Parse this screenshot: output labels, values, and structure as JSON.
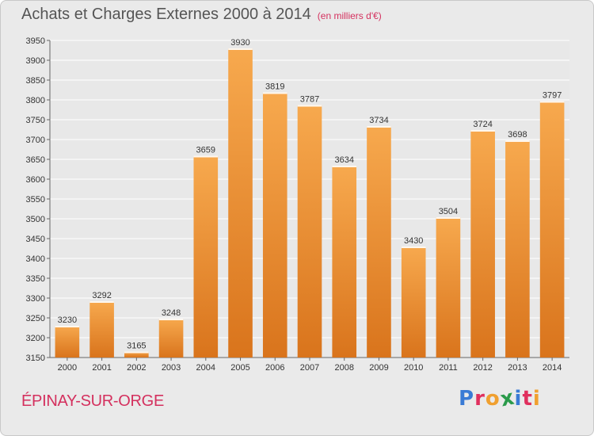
{
  "header": {
    "title": "Achats et Charges Externes 2000 à 2014",
    "unit": "(en milliers d'€)"
  },
  "footer": {
    "commune": "ÉPINAY-SUR-ORGE",
    "brand": {
      "letters": [
        "P",
        "r",
        "o",
        "x",
        "i",
        "t",
        "i"
      ],
      "colors": [
        "#3a7bd5",
        "#e0305e",
        "#f0a030",
        "#2a9a4a",
        "#3a7bd5",
        "#e0305e",
        "#f0a030"
      ]
    }
  },
  "colors": {
    "bar_top": "#f7a94e",
    "bar_bottom": "#d9741c",
    "plot_bg": "#e8e8e8",
    "grid": "#ffffff"
  },
  "chart_data": {
    "type": "bar",
    "title": "Achats et Charges Externes 2000 à 2014",
    "categories": [
      "2000",
      "2001",
      "2002",
      "2003",
      "2004",
      "2005",
      "2006",
      "2007",
      "2008",
      "2009",
      "2010",
      "2011",
      "2012",
      "2013",
      "2014"
    ],
    "values": [
      3230,
      3292,
      3165,
      3248,
      3659,
      3930,
      3819,
      3787,
      3634,
      3734,
      3430,
      3504,
      3724,
      3698,
      3797
    ],
    "value_labels": [
      "3230",
      "3292",
      "3165",
      "3248",
      "3659",
      "3930",
      "3819",
      "3787",
      "3634",
      "3734",
      "3430",
      "3504",
      "3724",
      "3698",
      "3797"
    ],
    "yticks": [
      "3150",
      "3200",
      "3250",
      "3300",
      "3350",
      "3400",
      "3450",
      "3500",
      "3550",
      "3600",
      "3650",
      "3700",
      "3750",
      "3800",
      "3850",
      "3900",
      "3950"
    ],
    "ylim": [
      3150,
      3950
    ],
    "grid": true,
    "legend": "none",
    "xlabel": "",
    "ylabel": ""
  }
}
